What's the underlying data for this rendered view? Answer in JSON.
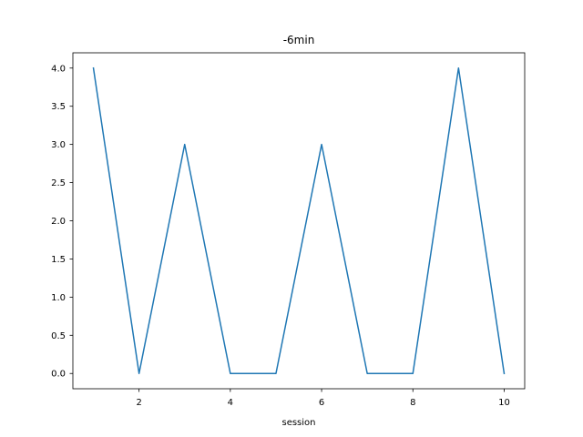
{
  "chart_data": {
    "type": "line",
    "title": "-6min",
    "xlabel": "session",
    "ylabel": "",
    "x": [
      1,
      2,
      3,
      4,
      5,
      6,
      7,
      8,
      9,
      10
    ],
    "series": [
      {
        "values": [
          4,
          0,
          3,
          0,
          0,
          3,
          0,
          0,
          4,
          0
        ],
        "color": "#1f77b4"
      }
    ],
    "xlim": [
      0.55,
      10.45
    ],
    "ylim": [
      -0.2,
      4.2
    ],
    "xticks": [
      2,
      4,
      6,
      8,
      10
    ],
    "xtick_labels": [
      "2",
      "4",
      "6",
      "8",
      "10"
    ],
    "yticks": [
      0.0,
      0.5,
      1.0,
      1.5,
      2.0,
      2.5,
      3.0,
      3.5,
      4.0
    ],
    "ytick_labels": [
      "0.0",
      "0.5",
      "1.0",
      "1.5",
      "2.0",
      "2.5",
      "3.0",
      "3.5",
      "4.0"
    ],
    "grid": false,
    "legend": false
  }
}
